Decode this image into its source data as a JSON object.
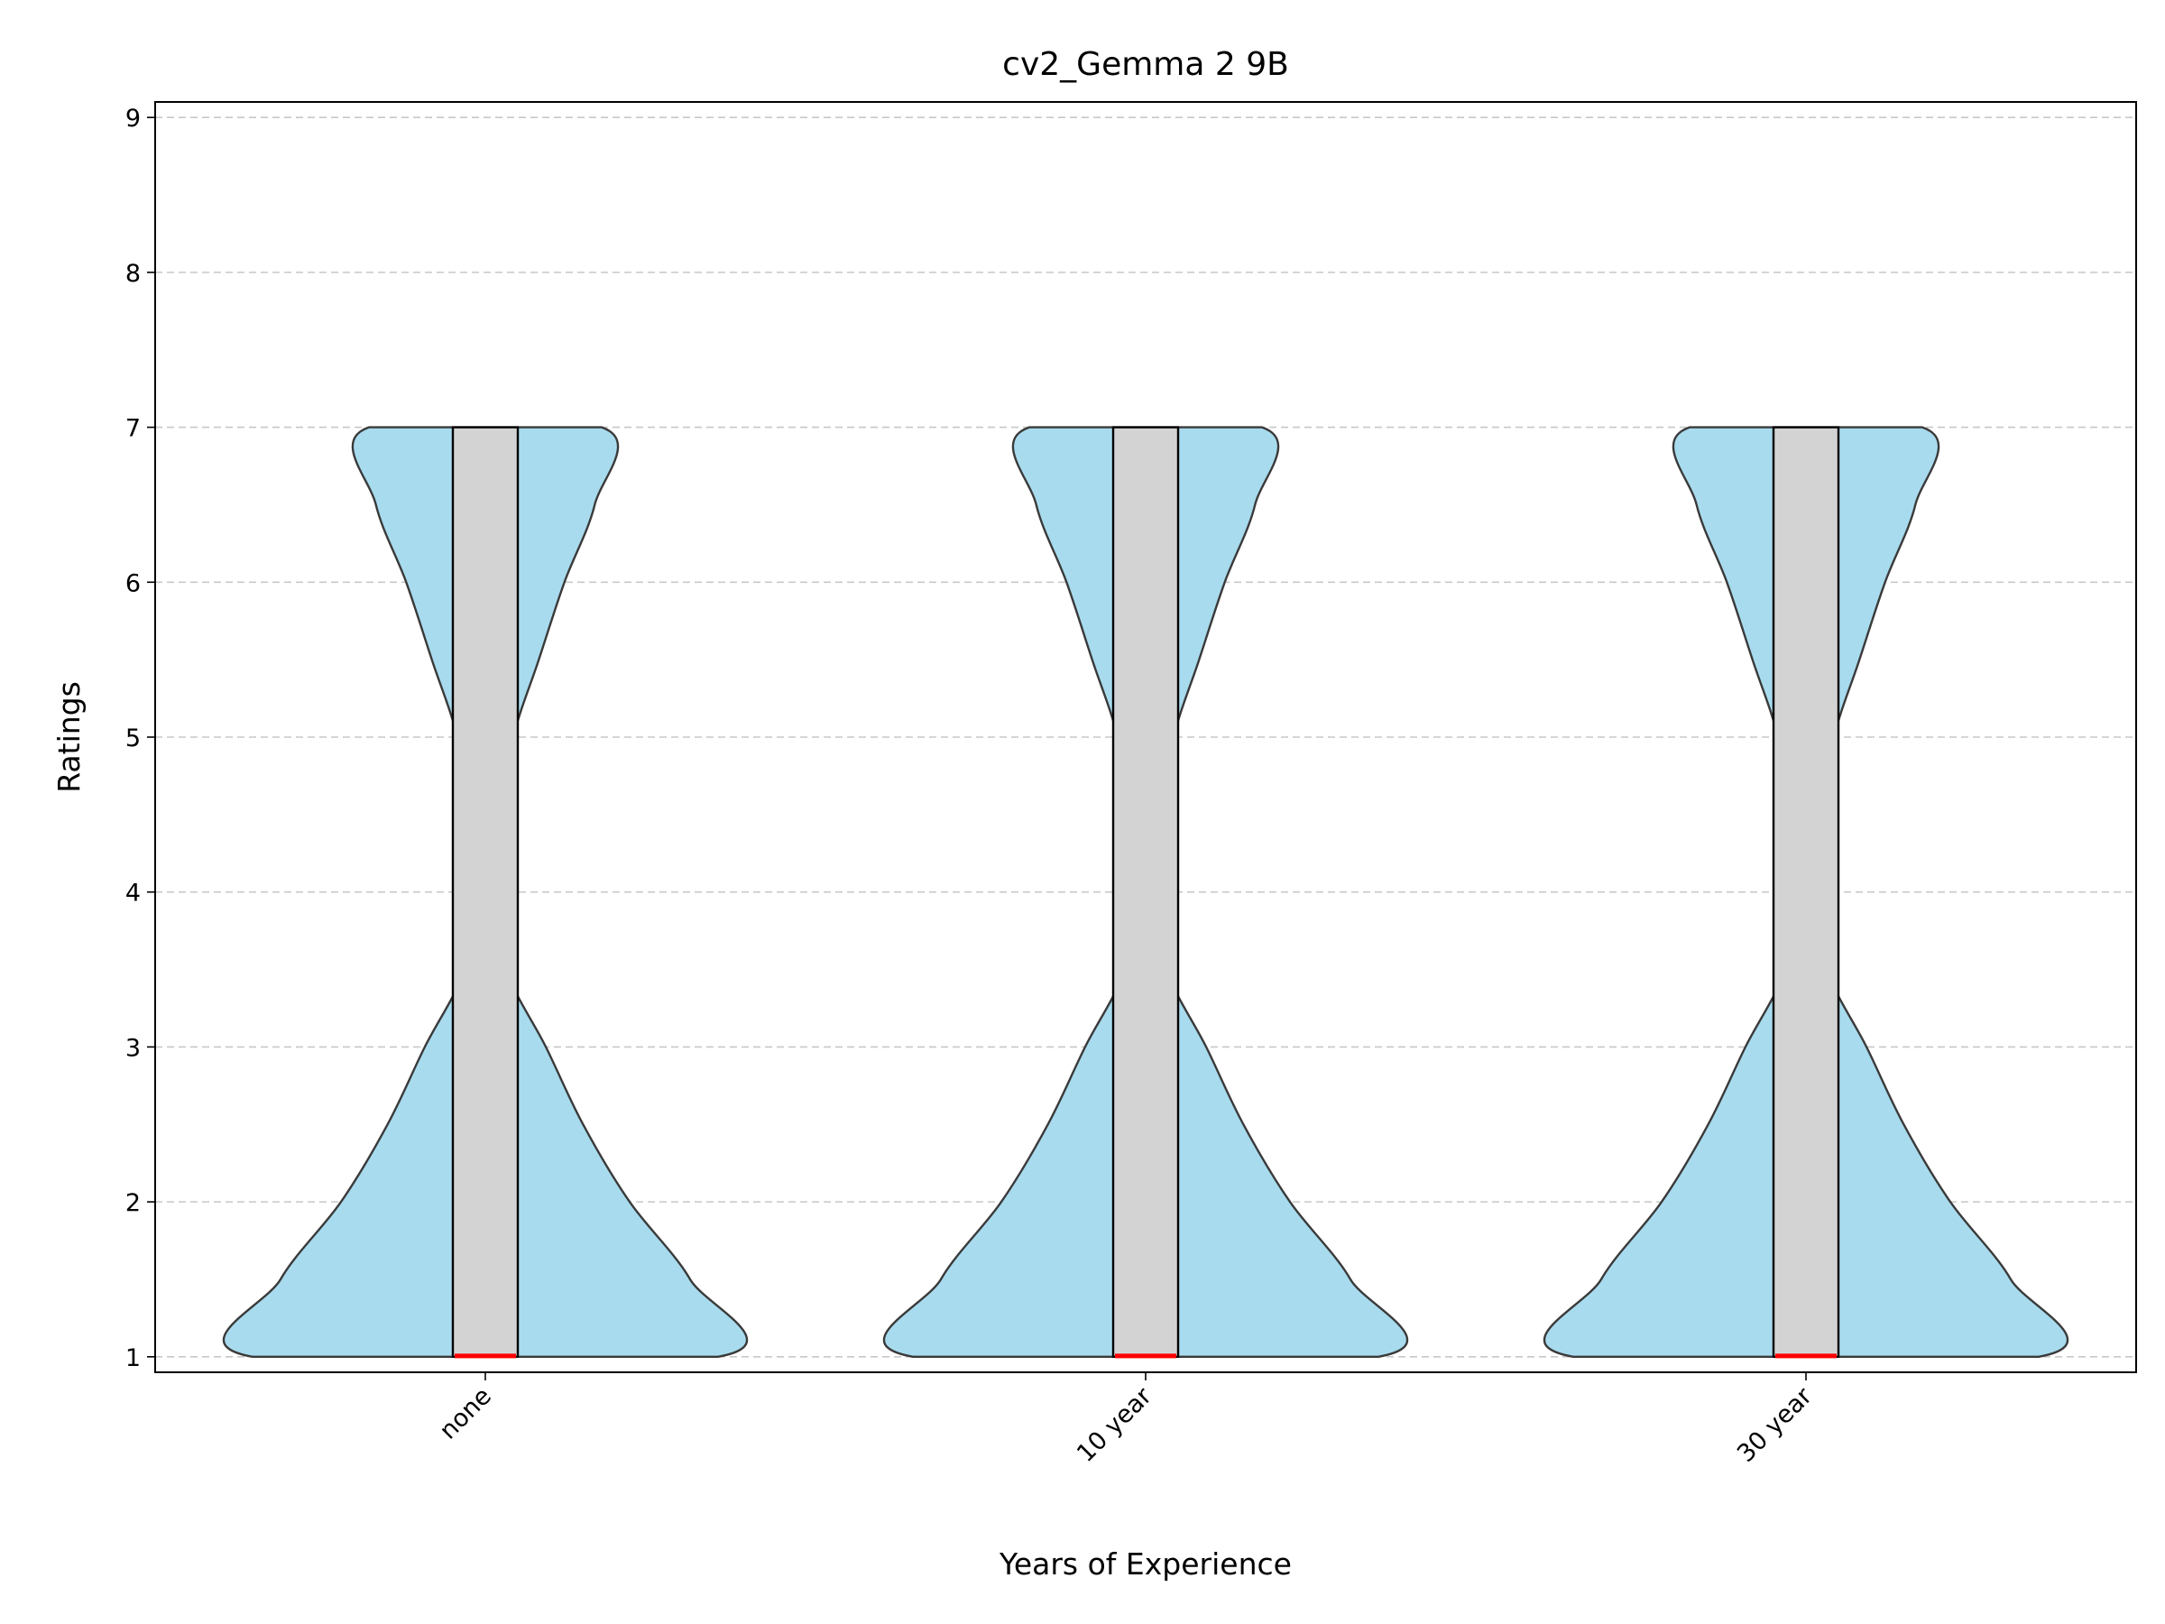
{
  "chart_data": {
    "type": "violin",
    "title": "cv2_Gemma 2 9B",
    "xlabel": "Years of Experience",
    "ylabel": "Ratings",
    "categories": [
      "none",
      "10 year",
      "30 year"
    ],
    "ylim": [
      0.9,
      9.1
    ],
    "yticks": [
      1,
      2,
      3,
      4,
      5,
      6,
      7,
      8,
      9
    ],
    "grid": "y-dashed",
    "colors": {
      "violin_fill": "#a8dbee",
      "box_fill": "#d3d3d3",
      "median": "#ff0000",
      "grid": "#c8c8c8"
    },
    "series": [
      {
        "category": "none",
        "min": 1,
        "q1": 1,
        "median": 1,
        "q3": 7,
        "max": 7,
        "density": [
          [
            1,
            1.0
          ],
          [
            1.5,
            0.88
          ],
          [
            2,
            0.62
          ],
          [
            2.5,
            0.42
          ],
          [
            3,
            0.26
          ],
          [
            3.5,
            0.09
          ],
          [
            4,
            0.05
          ],
          [
            4.5,
            0.07
          ],
          [
            5,
            0.12
          ],
          [
            5.5,
            0.23
          ],
          [
            6,
            0.34
          ],
          [
            6.5,
            0.47
          ],
          [
            7,
            0.5
          ]
        ]
      },
      {
        "category": "10 year",
        "min": 1,
        "q1": 1,
        "median": 1,
        "q3": 7,
        "max": 7,
        "density": [
          [
            1,
            1.0
          ],
          [
            1.5,
            0.88
          ],
          [
            2,
            0.62
          ],
          [
            2.5,
            0.42
          ],
          [
            3,
            0.26
          ],
          [
            3.5,
            0.09
          ],
          [
            4,
            0.05
          ],
          [
            4.5,
            0.07
          ],
          [
            5,
            0.12
          ],
          [
            5.5,
            0.23
          ],
          [
            6,
            0.34
          ],
          [
            6.5,
            0.47
          ],
          [
            7,
            0.5
          ]
        ]
      },
      {
        "category": "30 year",
        "min": 1,
        "q1": 1,
        "median": 1,
        "q3": 7,
        "max": 7,
        "density": [
          [
            1,
            1.0
          ],
          [
            1.5,
            0.88
          ],
          [
            2,
            0.62
          ],
          [
            2.5,
            0.42
          ],
          [
            3,
            0.26
          ],
          [
            3.5,
            0.09
          ],
          [
            4,
            0.05
          ],
          [
            4.5,
            0.07
          ],
          [
            5,
            0.12
          ],
          [
            5.5,
            0.23
          ],
          [
            6,
            0.34
          ],
          [
            6.5,
            0.47
          ],
          [
            7,
            0.5
          ]
        ]
      }
    ]
  }
}
